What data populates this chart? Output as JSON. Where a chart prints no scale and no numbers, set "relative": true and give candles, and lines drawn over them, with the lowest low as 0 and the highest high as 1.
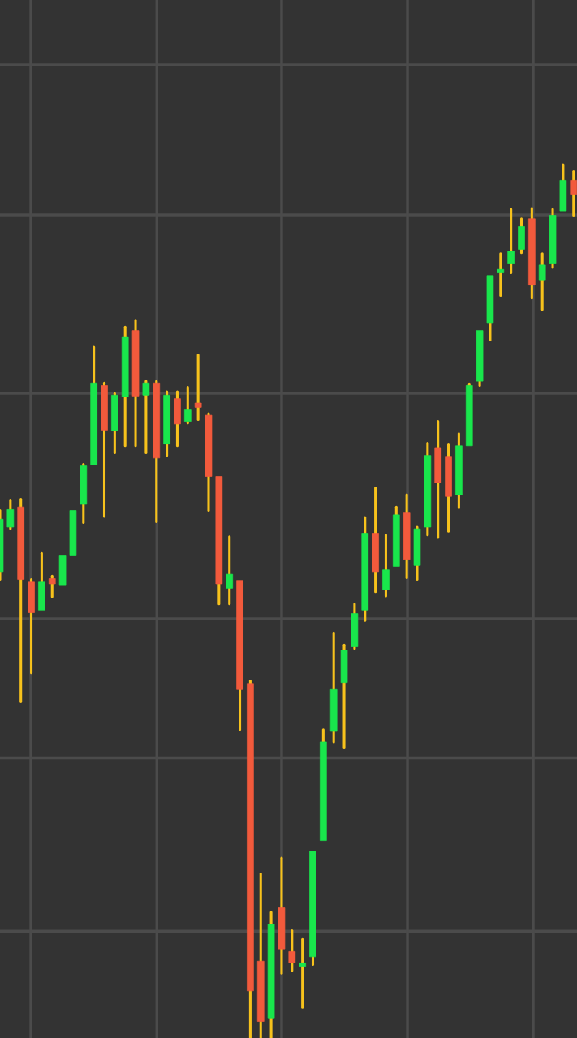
{
  "chart_data": {
    "type": "candlestick",
    "relative": true,
    "grid": true,
    "categories": [
      null,
      null,
      null,
      null,
      null,
      null,
      null,
      null,
      null,
      null,
      null,
      null,
      null,
      null,
      null,
      null,
      null,
      null,
      null,
      null,
      null,
      null,
      null,
      null,
      null,
      null,
      null,
      null,
      null,
      null,
      null,
      null,
      null,
      null,
      null,
      null,
      null,
      null,
      null,
      null,
      null,
      null,
      null,
      null,
      null,
      null,
      null,
      null,
      null,
      null,
      null,
      null,
      null,
      null,
      null,
      null
    ],
    "ohlc": [
      [
        0.534,
        0.604,
        0.525,
        0.594
      ],
      [
        0.585,
        0.616,
        0.583,
        0.605
      ],
      [
        0.608,
        0.617,
        0.385,
        0.525
      ],
      [
        0.522,
        0.525,
        0.418,
        0.487
      ],
      [
        0.49,
        0.555,
        0.49,
        0.522
      ],
      [
        0.526,
        0.529,
        0.505,
        0.52
      ],
      [
        0.518,
        0.552,
        0.518,
        0.552
      ],
      [
        0.552,
        0.604,
        0.552,
        0.604
      ],
      [
        0.611,
        0.657,
        0.59,
        0.655
      ],
      [
        0.656,
        0.791,
        0.656,
        0.75
      ],
      [
        0.747,
        0.75,
        0.597,
        0.696
      ],
      [
        0.695,
        0.738,
        0.67,
        0.736
      ],
      [
        0.734,
        0.814,
        0.678,
        0.803
      ],
      [
        0.81,
        0.822,
        0.678,
        0.735
      ],
      [
        0.736,
        0.752,
        0.67,
        0.75
      ],
      [
        0.75,
        0.752,
        0.591,
        0.664
      ],
      [
        0.68,
        0.74,
        0.667,
        0.736
      ],
      [
        0.732,
        0.74,
        0.678,
        0.703
      ],
      [
        0.706,
        0.745,
        0.704,
        0.72
      ],
      [
        0.727,
        0.782,
        0.708,
        0.722
      ],
      [
        0.713,
        0.715,
        0.604,
        0.643
      ],
      [
        0.643,
        0.643,
        0.497,
        0.52
      ],
      [
        0.515,
        0.574,
        0.497,
        0.531
      ],
      [
        0.524,
        0.524,
        0.353,
        0.399
      ],
      [
        0.406,
        0.409,
        0.0,
        0.054
      ],
      [
        0.088,
        0.188,
        0.0,
        0.019
      ],
      [
        0.023,
        0.144,
        0.0,
        0.13
      ],
      [
        0.149,
        0.206,
        0.074,
        0.102
      ],
      [
        0.099,
        0.123,
        0.077,
        0.086
      ],
      [
        0.082,
        0.113,
        0.035,
        0.086
      ],
      [
        0.093,
        0.214,
        0.084,
        0.214
      ],
      [
        0.226,
        0.353,
        0.226,
        0.339
      ],
      [
        0.351,
        0.464,
        0.339,
        0.399
      ],
      [
        0.407,
        0.45,
        0.332,
        0.444
      ],
      [
        0.448,
        0.497,
        0.446,
        0.486
      ],
      [
        0.49,
        0.596,
        0.478,
        0.578
      ],
      [
        0.578,
        0.63,
        0.511,
        0.534
      ],
      [
        0.513,
        0.576,
        0.506,
        0.536
      ],
      [
        0.54,
        0.608,
        0.54,
        0.599
      ],
      [
        0.602,
        0.622,
        0.527,
        0.548
      ],
      [
        0.541,
        0.585,
        0.525,
        0.583
      ],
      [
        0.585,
        0.681,
        0.576,
        0.667
      ],
      [
        0.676,
        0.706,
        0.573,
        0.636
      ],
      [
        0.666,
        0.68,
        0.58,
        0.62
      ],
      [
        0.622,
        0.692,
        0.607,
        0.678
      ],
      [
        0.678,
        0.749,
        0.678,
        0.747
      ],
      [
        0.752,
        0.81,
        0.747,
        0.81
      ],
      [
        0.819,
        0.873,
        0.799,
        0.873
      ],
      [
        0.876,
        0.898,
        0.85,
        0.88
      ],
      [
        0.887,
        0.949,
        0.876,
        0.901
      ],
      [
        0.903,
        0.938,
        0.899,
        0.929
      ],
      [
        0.938,
        0.95,
        0.847,
        0.862
      ],
      [
        0.868,
        0.898,
        0.834,
        0.885
      ],
      [
        0.887,
        0.949,
        0.882,
        0.942
      ],
      [
        0.947,
        1.0,
        0.947,
        0.982
      ],
      [
        0.982,
        0.992,
        0.942,
        0.966
      ]
    ]
  }
}
